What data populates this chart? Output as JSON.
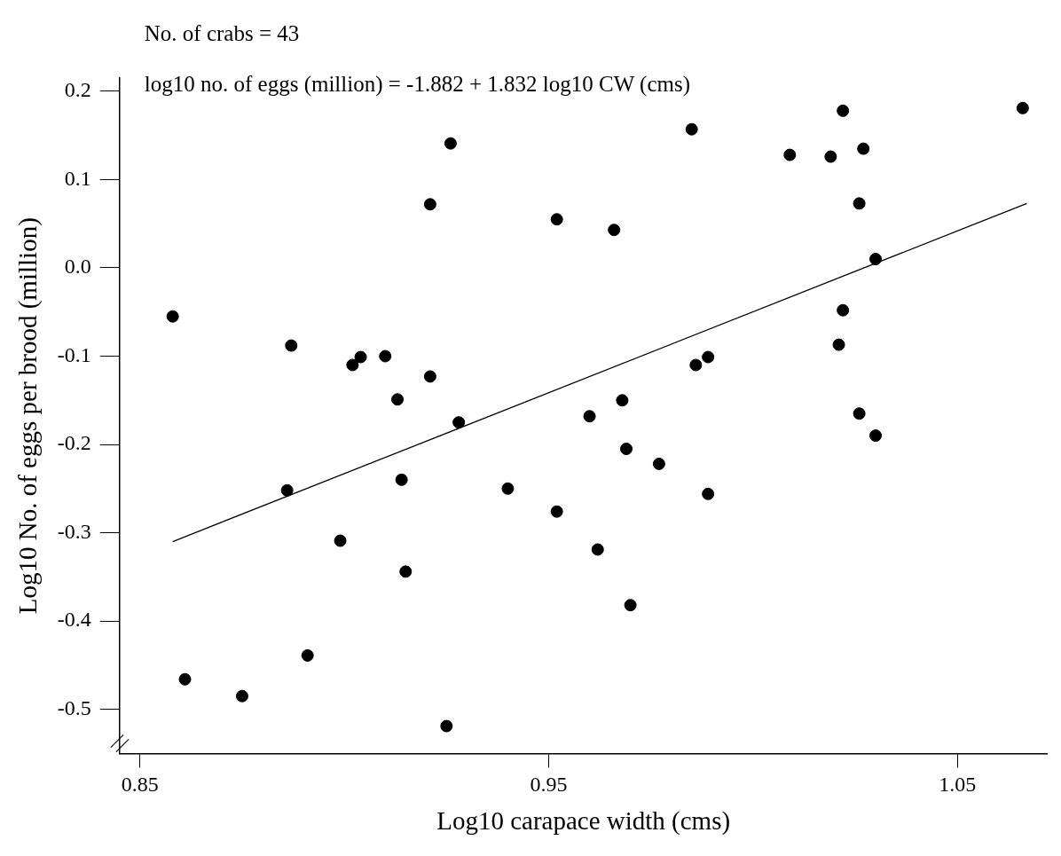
{
  "chart_data": {
    "type": "scatter",
    "xlabel": "Log10 carapace width (cms)",
    "ylabel": "Log10 No. of eggs per brood (million)",
    "annotations": [
      "No. of crabs = 43",
      "log10 no. of eggs (million) = -1.882 + 1.832 log10 CW (cms)"
    ],
    "xlim": [
      0.845,
      1.072
    ],
    "ylim": [
      -0.55,
      0.215
    ],
    "xticks": [
      0.85,
      0.95,
      1.05
    ],
    "yticks": [
      -0.5,
      -0.4,
      -0.3,
      -0.2,
      -0.1,
      {
        "value": 0,
        "label": "0.0"
      },
      0.1,
      0.2
    ],
    "grid": false,
    "marker": "circle",
    "series": [
      {
        "color": "#000000",
        "x": [
          0.858,
          0.861,
          0.875,
          0.887,
          0.886,
          0.891,
          0.899,
          0.902,
          0.904,
          0.91,
          0.913,
          0.914,
          0.915,
          0.921,
          0.921,
          0.926,
          0.925,
          0.928,
          0.94,
          0.952,
          0.952,
          0.96,
          0.962,
          0.966,
          0.968,
          0.969,
          0.97,
          0.977,
          0.985,
          0.986,
          0.989,
          0.989,
          1.009,
          1.019,
          1.022,
          1.027,
          1.026,
          1.03,
          1.022,
          1.021,
          1.026,
          1.03,
          1.066
        ],
        "values": [
          -0.055,
          -0.466,
          -0.485,
          -0.088,
          -0.252,
          -0.439,
          -0.309,
          -0.11,
          -0.101,
          -0.1,
          -0.149,
          -0.24,
          -0.344,
          -0.123,
          0.072,
          0.141,
          -0.519,
          -0.175,
          -0.25,
          0.055,
          -0.276,
          -0.168,
          -0.319,
          0.043,
          -0.15,
          -0.205,
          -0.382,
          -0.222,
          0.157,
          -0.11,
          -0.101,
          -0.256,
          0.128,
          0.126,
          0.178,
          0.135,
          0.073,
          0.01,
          -0.048,
          -0.087,
          -0.165,
          -0.19,
          0.181
        ]
      },
      {
        "type": "line",
        "marker": "none",
        "color": "#000000",
        "x": [
          0.858,
          1.067
        ],
        "values": [
          -0.31,
          0.073
        ]
      }
    ]
  }
}
